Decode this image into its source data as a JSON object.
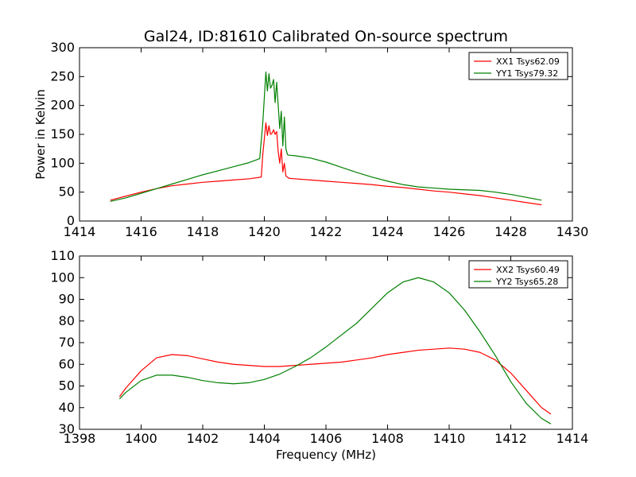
{
  "title": "Gal24, ID:81610 Calibrated On-source spectrum",
  "chart_data": [
    {
      "type": "line",
      "title": "Gal24, ID:81610 Calibrated On-source spectrum",
      "xlabel": "",
      "ylabel": "Power in Kelvin",
      "xlim": [
        1414,
        1430
      ],
      "ylim": [
        0,
        300
      ],
      "xticks": [
        1414,
        1416,
        1418,
        1420,
        1422,
        1424,
        1426,
        1428,
        1430
      ],
      "yticks": [
        0,
        50,
        100,
        150,
        200,
        250,
        300
      ],
      "grid": false,
      "legend_position": "top-right",
      "series": [
        {
          "name": "XX1 Tsys62.09",
          "color": "#ff0000",
          "x": [
            1415.0,
            1415.5,
            1416.0,
            1416.5,
            1417.0,
            1417.5,
            1418.0,
            1418.5,
            1419.0,
            1419.5,
            1419.9,
            1419.95,
            1420.05,
            1420.1,
            1420.15,
            1420.2,
            1420.25,
            1420.3,
            1420.35,
            1420.4,
            1420.45,
            1420.5,
            1420.55,
            1420.6,
            1420.65,
            1420.7,
            1420.75,
            1420.8,
            1421.0,
            1421.5,
            1422.0,
            1422.5,
            1423.0,
            1423.5,
            1424.0,
            1424.5,
            1425.0,
            1425.5,
            1426.0,
            1426.5,
            1427.0,
            1427.5,
            1428.0,
            1428.5,
            1429.0
          ],
          "y": [
            36,
            43,
            50,
            56,
            61,
            64,
            67,
            69,
            71,
            73,
            76,
            115,
            170,
            148,
            165,
            150,
            152,
            158,
            150,
            155,
            120,
            100,
            125,
            85,
            100,
            78,
            76,
            74,
            73,
            71,
            69,
            67,
            65,
            63,
            60,
            58,
            55,
            52,
            50,
            47,
            44,
            40,
            36,
            32,
            28
          ]
        },
        {
          "name": "YY1 Tsys79.32",
          "color": "#008000",
          "x": [
            1415.0,
            1415.5,
            1416.0,
            1416.5,
            1417.0,
            1417.5,
            1418.0,
            1418.5,
            1419.0,
            1419.5,
            1419.85,
            1419.95,
            1420.05,
            1420.1,
            1420.15,
            1420.2,
            1420.25,
            1420.3,
            1420.35,
            1420.4,
            1420.45,
            1420.5,
            1420.55,
            1420.6,
            1420.65,
            1420.7,
            1420.75,
            1420.8,
            1421.0,
            1421.5,
            1422.0,
            1422.5,
            1423.0,
            1423.5,
            1424.0,
            1424.5,
            1425.0,
            1425.5,
            1426.0,
            1426.5,
            1427.0,
            1427.5,
            1428.0,
            1428.5,
            1429.0
          ],
          "y": [
            34,
            40,
            48,
            56,
            64,
            72,
            80,
            87,
            94,
            101,
            108,
            170,
            258,
            225,
            255,
            230,
            235,
            245,
            205,
            240,
            200,
            160,
            190,
            130,
            180,
            125,
            115,
            114,
            113,
            109,
            102,
            93,
            84,
            76,
            69,
            63,
            59,
            57,
            55,
            54,
            53,
            50,
            46,
            41,
            36
          ]
        }
      ]
    },
    {
      "type": "line",
      "title": "",
      "xlabel": "Frequency (MHz)",
      "ylabel": "",
      "xlim": [
        1398,
        1414
      ],
      "ylim": [
        30,
        110
      ],
      "xticks": [
        1398,
        1400,
        1402,
        1404,
        1406,
        1408,
        1410,
        1412,
        1414
      ],
      "yticks": [
        30,
        40,
        50,
        60,
        70,
        80,
        90,
        100,
        110
      ],
      "grid": false,
      "legend_position": "top-right",
      "series": [
        {
          "name": "XX2 Tsys60.49",
          "color": "#ff0000",
          "x": [
            1399.3,
            1399.5,
            1400.0,
            1400.5,
            1401.0,
            1401.5,
            1402.0,
            1402.5,
            1403.0,
            1403.5,
            1404.0,
            1404.5,
            1405.0,
            1405.5,
            1406.0,
            1406.5,
            1407.0,
            1407.5,
            1408.0,
            1408.5,
            1409.0,
            1409.5,
            1410.0,
            1410.5,
            1411.0,
            1411.5,
            1412.0,
            1412.5,
            1413.0,
            1413.3
          ],
          "y": [
            45,
            49,
            57,
            63,
            64.5,
            64,
            62.5,
            61,
            60,
            59.5,
            59,
            59,
            59.5,
            60,
            60.5,
            61,
            62,
            63,
            64.5,
            65.5,
            66.5,
            67,
            67.5,
            67,
            65.5,
            62,
            56,
            48,
            40,
            37
          ]
        },
        {
          "name": "YY2 Tsys65.28",
          "color": "#008000",
          "x": [
            1399.3,
            1399.5,
            1400.0,
            1400.5,
            1401.0,
            1401.5,
            1402.0,
            1402.5,
            1403.0,
            1403.5,
            1404.0,
            1404.5,
            1405.0,
            1405.5,
            1406.0,
            1406.5,
            1407.0,
            1407.5,
            1408.0,
            1408.5,
            1409.0,
            1409.5,
            1410.0,
            1410.5,
            1411.0,
            1411.5,
            1412.0,
            1412.5,
            1413.0,
            1413.3
          ],
          "y": [
            44,
            47,
            52.5,
            55,
            55,
            54,
            52.5,
            51.5,
            51,
            51.5,
            53,
            55.5,
            59,
            63,
            68,
            73.5,
            79,
            86,
            93,
            98,
            100,
            98,
            93,
            85,
            75,
            64,
            52,
            42,
            35,
            32.5
          ]
        }
      ]
    }
  ]
}
